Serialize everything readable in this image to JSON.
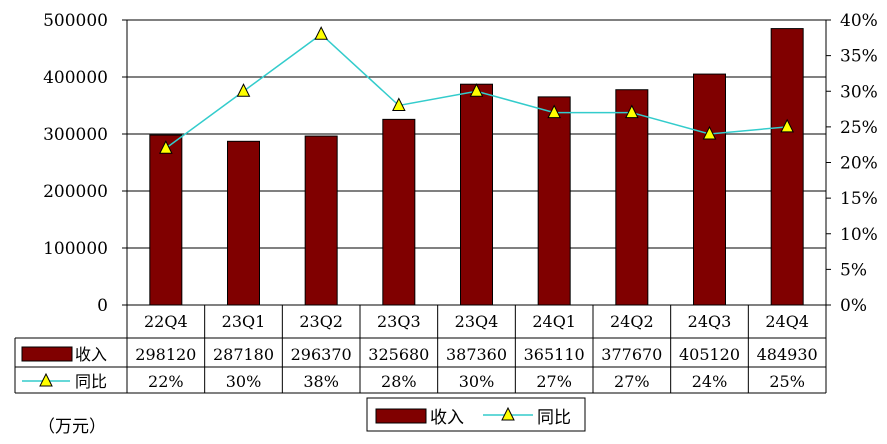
{
  "chart_data": {
    "type": "bar",
    "categories": [
      "22Q4",
      "23Q1",
      "23Q2",
      "23Q3",
      "23Q4",
      "24Q1",
      "24Q2",
      "24Q3",
      "24Q4"
    ],
    "series": [
      {
        "name": "收入",
        "type": "bar",
        "axis": "left",
        "color": "#800000",
        "values": [
          298120,
          287180,
          296370,
          325680,
          387360,
          365110,
          377670,
          405120,
          484930
        ],
        "labels": [
          "298120",
          "287180",
          "296370",
          "325680",
          "387360",
          "365110",
          "377670",
          "405120",
          "484930"
        ]
      },
      {
        "name": "同比",
        "type": "line",
        "axis": "right",
        "line_color": "#33cccc",
        "marker": "triangle",
        "marker_color": "#ffff00",
        "values": [
          0.22,
          0.3,
          0.38,
          0.28,
          0.3,
          0.27,
          0.27,
          0.24,
          0.25
        ],
        "labels": [
          "22%",
          "30%",
          "38%",
          "28%",
          "30%",
          "27%",
          "27%",
          "24%",
          "25%"
        ]
      }
    ],
    "y_left": {
      "min": 0,
      "max": 500000,
      "ticks": [
        0,
        100000,
        200000,
        300000,
        400000,
        500000
      ],
      "tick_labels": [
        "0",
        "100000",
        "200000",
        "300000",
        "400000",
        "500000"
      ]
    },
    "y_right": {
      "min": 0,
      "max": 0.4,
      "ticks": [
        0,
        0.05,
        0.1,
        0.15,
        0.2,
        0.25,
        0.3,
        0.35,
        0.4
      ],
      "tick_labels": [
        "0%",
        "5%",
        "10%",
        "15%",
        "20%",
        "25%",
        "30%",
        "35%",
        "40%"
      ]
    },
    "grid": true,
    "legend_position": "bottom-center",
    "data_table": true,
    "unit_label": "（万元）"
  }
}
